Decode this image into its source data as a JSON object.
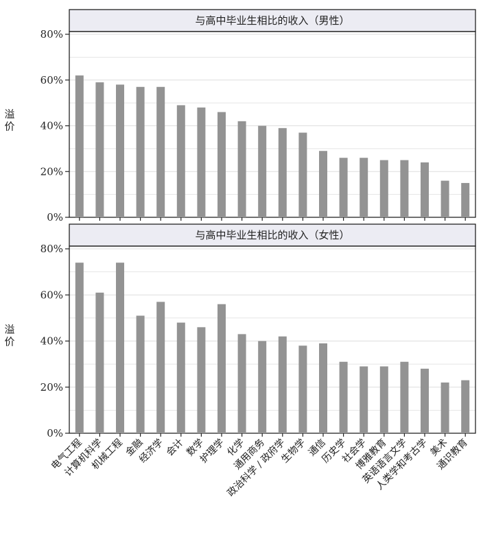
{
  "chart_data": [
    {
      "type": "bar",
      "title": "与高中毕业生相比的收入（男性）",
      "ylabel": "溢价",
      "xlabel": "",
      "ylim": [
        0,
        80
      ],
      "y_ticks": [
        "0%",
        "20%",
        "40%",
        "60%",
        "80%"
      ],
      "categories": [
        "电气工程",
        "计算机科学",
        "机械工程",
        "金融",
        "经济学",
        "会计",
        "数学",
        "护理学",
        "化学",
        "通用商务",
        "政治科学 / 政府学",
        "生物学",
        "通信",
        "历史学",
        "社会学",
        "博雅教育",
        "英语语言文学",
        "人类学和考古学",
        "美术",
        "通识教育"
      ],
      "values": [
        62,
        59,
        58,
        57,
        57,
        49,
        48,
        46,
        42,
        40,
        39,
        37,
        29,
        26,
        26,
        25,
        25,
        24,
        16,
        15
      ],
      "bar_color": "#939393",
      "grid": true
    },
    {
      "type": "bar",
      "title": "与高中毕业生相比的收入（女性）",
      "ylabel": "溢价",
      "xlabel": "",
      "ylim": [
        0,
        80
      ],
      "y_ticks": [
        "0%",
        "20%",
        "40%",
        "60%",
        "80%"
      ],
      "categories": [
        "电气工程",
        "计算机科学",
        "机械工程",
        "金融",
        "经济学",
        "会计",
        "数学",
        "护理学",
        "化学",
        "通用商务",
        "政治科学 / 政府学",
        "生物学",
        "通信",
        "历史学",
        "社会学",
        "博雅教育",
        "英语语言文学",
        "人类学和考古学",
        "美术",
        "通识教育"
      ],
      "values": [
        74,
        61,
        74,
        51,
        57,
        48,
        46,
        56,
        43,
        40,
        42,
        38,
        39,
        31,
        29,
        29,
        31,
        28,
        22,
        23
      ],
      "bar_color": "#939393",
      "grid": true
    }
  ],
  "colors": {
    "panel_header_bg": "#ececf3",
    "grid": "#dddddd",
    "axis": "#222222"
  }
}
